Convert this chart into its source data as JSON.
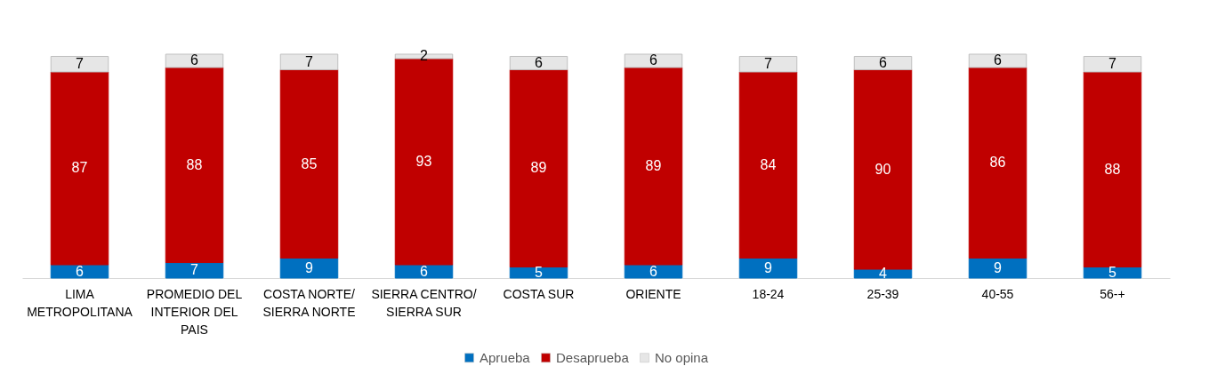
{
  "chart_data": {
    "type": "bar",
    "stacked": true,
    "data_labels": true,
    "legend": "bottom",
    "categories": [
      "LIMA METROPOLITANA",
      "PROMEDIO DEL INTERIOR DEL PAIS",
      "COSTA NORTE/ SIERRA NORTE",
      "SIERRA CENTRO/ SIERRA SUR",
      "COSTA SUR",
      "ORIENTE",
      "18-24",
      "25-39",
      "40-55",
      "56-+"
    ],
    "series": [
      {
        "name": "Aprueba",
        "color": "#0070c0",
        "values": [
          6,
          7,
          9,
          6,
          5,
          6,
          9,
          4,
          9,
          5
        ]
      },
      {
        "name": "Desaprueba",
        "color": "#c00000",
        "values": [
          87,
          88,
          85,
          93,
          89,
          89,
          84,
          90,
          86,
          88
        ]
      },
      {
        "name": "No opina",
        "color": "#e6e6e6",
        "values": [
          7,
          6,
          7,
          2,
          6,
          6,
          7,
          6,
          6,
          7
        ]
      }
    ]
  }
}
